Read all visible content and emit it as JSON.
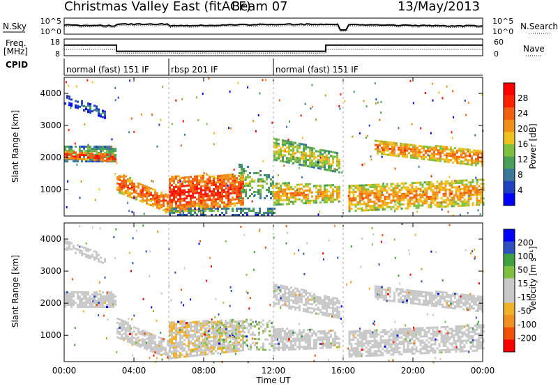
{
  "header": {
    "title": "Christmas Valley East (fitACF)",
    "beam": "Beam 07",
    "date": "13/May/2013"
  },
  "params": {
    "nsky_label": "N.Sky",
    "nsky_ticks": [
      "10^5",
      "10^0"
    ],
    "nsearch_label": "N.Search",
    "nsearch_ticks": [
      "10^5",
      "10^0"
    ],
    "freq_label_1": "Freq.",
    "freq_label_2": "[MHz]",
    "freq_ticks": [
      "18",
      "8"
    ],
    "nave_label": "Nave",
    "nave_ticks": [
      "60",
      "0"
    ],
    "cpid_label": "CPID",
    "cpid_segments": [
      {
        "label": "normal (fast) 151 IF",
        "start_h": 0,
        "end_h": 6
      },
      {
        "label": "rbsp 201 IF",
        "start_h": 6,
        "end_h": 12
      },
      {
        "label": "normal (fast) 151 IF",
        "start_h": 12,
        "end_h": 24
      }
    ],
    "freq_series": {
      "x": [
        0,
        3,
        3,
        15,
        15,
        24
      ],
      "y": [
        15,
        15,
        9.5,
        9.5,
        15,
        15
      ]
    },
    "nave_series": {
      "x": [
        0,
        3,
        3,
        15,
        15,
        24
      ],
      "y": [
        26,
        26,
        10,
        10,
        26,
        26
      ]
    }
  },
  "chart_data": [
    {
      "type": "heatmap",
      "name": "power",
      "ylabel": "Slant Range [km]",
      "xlabel": "Time UT",
      "x_ticks": [
        "00:00",
        "04:00",
        "08:00",
        "12:00",
        "16:00",
        "20:00",
        "00:00"
      ],
      "y_ticks": [
        1000,
        2000,
        3000,
        4000
      ],
      "xlim_hours": [
        0,
        24
      ],
      "ylim_km": [
        180,
        4500
      ],
      "colorbar": {
        "label": "Power [dB]",
        "ticks": [
          "4",
          "8",
          "12",
          "16",
          "20",
          "24",
          "28"
        ],
        "range": [
          0,
          30
        ],
        "colors": [
          "#0000ff",
          "#2040c0",
          "#3c7898",
          "#4aa058",
          "#80c040",
          "#f0c020",
          "#f09018",
          "#f06010",
          "#ff2000",
          "#ff0000"
        ]
      },
      "bands": [
        {
          "t0": 0.0,
          "t1": 2.3,
          "r0": 3650,
          "r1": 3950,
          "r0e": 3200,
          "r1e": 3450,
          "v": 9,
          "d": 0.5
        },
        {
          "t0": 0.0,
          "t1": 3.0,
          "r0": 1850,
          "r1": 2350,
          "r0e": 1850,
          "r1e": 2300,
          "v": 14,
          "d": 0.8
        },
        {
          "t0": 0.0,
          "t1": 3.0,
          "r0": 1950,
          "r1": 2150,
          "r0e": 1850,
          "r1e": 2050,
          "v": 27,
          "d": 0.8
        },
        {
          "t0": 3.0,
          "t1": 6.0,
          "r0": 900,
          "r1": 1500,
          "r0e": 250,
          "r1e": 800,
          "v": 24,
          "d": 0.75
        },
        {
          "t0": 6.0,
          "t1": 10.2,
          "r0": 250,
          "r1": 1400,
          "r0e": 500,
          "r1e": 1450,
          "v": 26,
          "d": 0.8
        },
        {
          "t0": 6.0,
          "t1": 12.0,
          "r0": 180,
          "r1": 420,
          "r0e": 180,
          "r1e": 420,
          "v": 12,
          "d": 0.5
        },
        {
          "t0": 10.0,
          "t1": 12.0,
          "r0": 700,
          "r1": 1800,
          "r0e": 700,
          "r1e": 1400,
          "v": 15,
          "d": 0.45
        },
        {
          "t0": 12.0,
          "t1": 15.8,
          "r0": 1900,
          "r1": 2600,
          "r0e": 1500,
          "r1e": 2100,
          "v": 17,
          "d": 0.7
        },
        {
          "t0": 12.0,
          "t1": 15.8,
          "r0": 500,
          "r1": 1200,
          "r0e": 600,
          "r1e": 1100,
          "v": 20,
          "d": 0.7
        },
        {
          "t0": 16.3,
          "t1": 24.0,
          "r0": 300,
          "r1": 1100,
          "r0e": 500,
          "r1e": 1300,
          "v": 21,
          "d": 0.7
        },
        {
          "t0": 17.8,
          "t1": 24.0,
          "r0": 2100,
          "r1": 2500,
          "r0e": 1700,
          "r1e": 2200,
          "v": 22,
          "d": 0.75
        }
      ]
    },
    {
      "type": "heatmap",
      "name": "velocity",
      "ylabel": "Slant Range [km]",
      "xlabel": "Time UT",
      "x_ticks": [
        "00:00",
        "04:00",
        "08:00",
        "12:00",
        "16:00",
        "20:00",
        "00:00"
      ],
      "y_ticks": [
        1000,
        2000,
        3000,
        4000
      ],
      "xlim_hours": [
        0,
        24
      ],
      "ylim_km": [
        180,
        4500
      ],
      "colorbar": {
        "label": "Velocity [m s⁻¹]",
        "ticks": [
          "200",
          "100",
          "50",
          "15",
          "-15",
          "-50",
          "-100",
          "-200"
        ],
        "range": [
          -250,
          250
        ],
        "colors": [
          "#ff0000",
          "#f05008",
          "#f09020",
          "#f0b028",
          "#c8c8c8",
          "#c8c8c8",
          "#80c040",
          "#40a040",
          "#3050c0",
          "#0000ff"
        ]
      },
      "bands": [
        {
          "t0": 0.0,
          "t1": 2.3,
          "r0": 3650,
          "r1": 3950,
          "r0e": 3200,
          "r1e": 3450,
          "v": 0,
          "d": 0.45
        },
        {
          "t0": 0.0,
          "t1": 3.0,
          "r0": 1850,
          "r1": 2350,
          "r0e": 1850,
          "r1e": 2300,
          "v": 0,
          "d": 0.85
        },
        {
          "t0": 3.0,
          "t1": 6.0,
          "r0": 900,
          "r1": 1500,
          "r0e": 250,
          "r1e": 800,
          "v": 0,
          "d": 0.75
        },
        {
          "t0": 6.0,
          "t1": 10.2,
          "r0": 250,
          "r1": 1400,
          "r0e": 500,
          "r1e": 1450,
          "v": -40,
          "d": 0.8
        },
        {
          "t0": 8.0,
          "t1": 12.0,
          "r0": 600,
          "r1": 1400,
          "r0e": 500,
          "r1e": 1500,
          "v": 40,
          "d": 0.35
        },
        {
          "t0": 12.0,
          "t1": 15.8,
          "r0": 1900,
          "r1": 2600,
          "r0e": 1500,
          "r1e": 2100,
          "v": 0,
          "d": 0.7
        },
        {
          "t0": 12.0,
          "t1": 15.8,
          "r0": 500,
          "r1": 1200,
          "r0e": 600,
          "r1e": 1100,
          "v": 0,
          "d": 0.7
        },
        {
          "t0": 16.3,
          "t1": 24.0,
          "r0": 300,
          "r1": 1100,
          "r0e": 500,
          "r1e": 1300,
          "v": 0,
          "d": 0.7
        },
        {
          "t0": 17.8,
          "t1": 24.0,
          "r0": 2100,
          "r1": 2500,
          "r0e": 1700,
          "r1e": 2200,
          "v": 0,
          "d": 0.75
        }
      ]
    }
  ]
}
